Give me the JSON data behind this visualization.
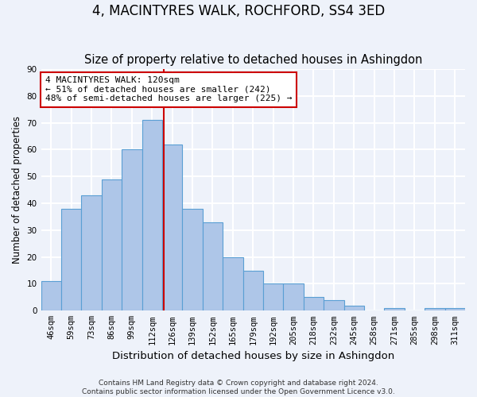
{
  "title": "4, MACINTYRES WALK, ROCHFORD, SS4 3ED",
  "subtitle": "Size of property relative to detached houses in Ashingdon",
  "xlabel": "Distribution of detached houses by size in Ashingdon",
  "ylabel": "Number of detached properties",
  "categories": [
    "46sqm",
    "59sqm",
    "73sqm",
    "86sqm",
    "99sqm",
    "112sqm",
    "126sqm",
    "139sqm",
    "152sqm",
    "165sqm",
    "179sqm",
    "192sqm",
    "205sqm",
    "218sqm",
    "232sqm",
    "245sqm",
    "258sqm",
    "271sqm",
    "285sqm",
    "298sqm",
    "311sqm"
  ],
  "values": [
    11,
    38,
    43,
    49,
    60,
    71,
    62,
    38,
    33,
    20,
    15,
    10,
    10,
    5,
    4,
    2,
    0,
    1,
    0,
    1,
    1
  ],
  "bar_color": "#aec6e8",
  "bar_edge_color": "#5a9fd4",
  "background_color": "#eef2fa",
  "grid_color": "#ffffff",
  "property_line_color": "#cc0000",
  "annotation_line1": "4 MACINTYRES WALK: 120sqm",
  "annotation_line2": "← 51% of detached houses are smaller (242)",
  "annotation_line3": "48% of semi-detached houses are larger (225) →",
  "annotation_box_color": "#ffffff",
  "annotation_box_edge_color": "#cc0000",
  "ylim": [
    0,
    90
  ],
  "yticks": [
    0,
    10,
    20,
    30,
    40,
    50,
    60,
    70,
    80,
    90
  ],
  "footnote": "Contains HM Land Registry data © Crown copyright and database right 2024.\nContains public sector information licensed under the Open Government Licence v3.0.",
  "title_fontsize": 12,
  "subtitle_fontsize": 10.5,
  "xlabel_fontsize": 9.5,
  "ylabel_fontsize": 8.5,
  "tick_fontsize": 7.5,
  "annotation_fontsize": 8,
  "footnote_fontsize": 6.5
}
